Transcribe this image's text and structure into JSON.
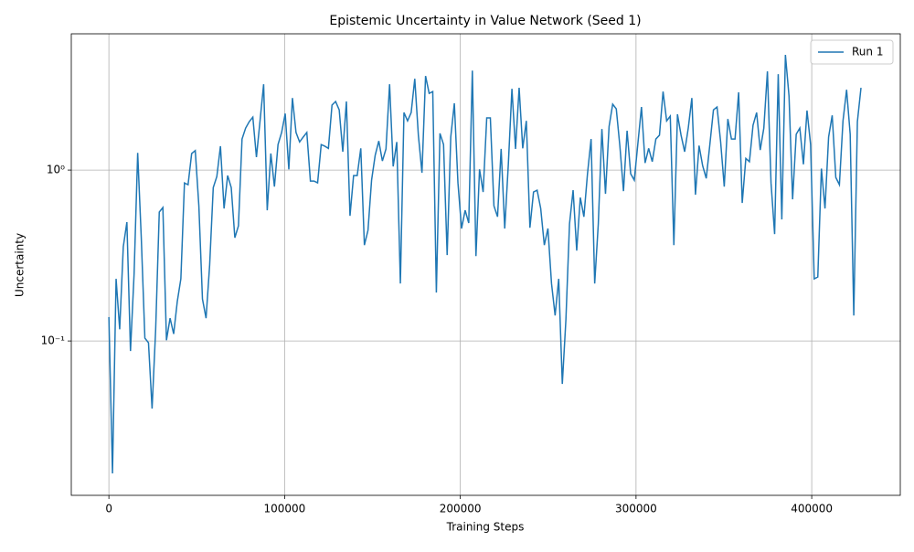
{
  "chart_data": {
    "type": "line",
    "title": "Epistemic Uncertainty in Value Network (Seed 1)",
    "xlabel": "Training Steps",
    "ylabel": "Uncertainty",
    "x": [
      0,
      2048,
      4096,
      6144,
      8192,
      10240,
      12288,
      14336,
      16384,
      18432,
      20480,
      22528,
      24576,
      26624,
      28672,
      30720,
      32768,
      34816,
      36864,
      38912,
      40960,
      43008,
      45056,
      47104,
      49152,
      51200,
      53248,
      55296,
      57344,
      59392,
      61440,
      63488,
      65536,
      67584,
      69632,
      71680,
      73728,
      75776,
      77824,
      79872,
      81920,
      83968,
      86016,
      88064,
      90112,
      92160,
      94208,
      96256,
      98304,
      100352,
      102400,
      104448,
      106496,
      108544,
      110592,
      112640,
      114688,
      116736,
      118784,
      120832,
      122880,
      124928,
      126976,
      129024,
      131072,
      133120,
      135168,
      137216,
      139264,
      141312,
      143360,
      145408,
      147456,
      149504,
      151552,
      153600,
      155648,
      157696,
      159744,
      161792,
      163840,
      165888,
      167936,
      169984,
      172032,
      174080,
      176128,
      178176,
      180224,
      182272,
      184320,
      186368,
      188416,
      190464,
      192512,
      194560,
      196608,
      198656,
      200704,
      202752,
      204800,
      206848,
      208896,
      210944,
      212992,
      215040,
      217088,
      219136,
      221184,
      223232,
      225280,
      227328,
      229376,
      231424,
      233472,
      235520,
      237568,
      239616,
      241664,
      243712,
      245760,
      247808,
      249856,
      251904,
      253952,
      256000,
      258048,
      260096,
      262144,
      264192,
      266240,
      268288,
      270336,
      272384,
      274432,
      276480,
      278528,
      280576,
      282624,
      284672,
      286720,
      288768,
      290816,
      292864,
      294912,
      296960,
      299008,
      301056,
      303104,
      305152,
      307200,
      309248,
      311296,
      313344,
      315392,
      317440,
      319488,
      321536,
      323584,
      325632,
      327680,
      329728,
      331776,
      333824,
      335872,
      337920,
      339968,
      342016,
      344064,
      346112,
      348160,
      350208,
      352256,
      354304,
      356352,
      358400,
      360448,
      362496,
      364544,
      366592,
      368640,
      370688,
      372736,
      374784,
      376832,
      378880,
      380928,
      382976,
      385024,
      387072,
      389120,
      391168,
      393216,
      395264,
      397312,
      399360,
      401408,
      403456,
      405504,
      407552,
      409600,
      411648,
      413696,
      415744,
      417792,
      419840,
      421888,
      423936,
      425984,
      428032
    ],
    "series": [
      {
        "name": "Run 1",
        "color": "#1f77b4",
        "values": [
          0.138,
          0.0168,
          0.231,
          0.117,
          0.356,
          0.496,
          0.0873,
          0.246,
          1.26,
          0.402,
          0.104,
          0.0976,
          0.0402,
          0.117,
          0.568,
          0.604,
          0.101,
          0.136,
          0.11,
          0.17,
          0.231,
          0.841,
          0.821,
          1.25,
          1.3,
          0.618,
          0.176,
          0.136,
          0.278,
          0.79,
          0.917,
          1.38,
          0.596,
          0.929,
          0.79,
          0.402,
          0.472,
          1.52,
          1.76,
          1.92,
          2.04,
          1.19,
          1.94,
          3.18,
          0.582,
          1.25,
          0.8,
          1.41,
          1.66,
          2.14,
          1.01,
          2.64,
          1.66,
          1.46,
          1.56,
          1.66,
          0.863,
          0.863,
          0.842,
          1.41,
          1.38,
          1.34,
          2.4,
          2.52,
          2.25,
          1.28,
          2.52,
          0.54,
          0.929,
          0.929,
          1.34,
          0.364,
          0.444,
          0.873,
          1.22,
          1.48,
          1.13,
          1.33,
          3.18,
          1.05,
          1.46,
          0.217,
          2.17,
          1.94,
          2.17,
          3.42,
          1.6,
          0.964,
          3.55,
          2.81,
          2.88,
          0.192,
          1.64,
          1.41,
          0.318,
          1.56,
          2.46,
          0.842,
          0.455,
          0.582,
          0.49,
          3.82,
          0.314,
          1.01,
          0.744,
          2.02,
          2.02,
          0.618,
          0.533,
          1.33,
          0.455,
          1.08,
          2.99,
          1.33,
          3.03,
          1.34,
          1.94,
          0.46,
          0.744,
          0.763,
          0.596,
          0.364,
          0.455,
          0.217,
          0.141,
          0.231,
          0.0561,
          0.133,
          0.484,
          0.763,
          0.338,
          0.691,
          0.533,
          0.952,
          1.52,
          0.217,
          0.484,
          1.74,
          0.726,
          1.8,
          2.43,
          2.28,
          1.38,
          0.753,
          1.7,
          0.952,
          0.873,
          1.43,
          2.34,
          1.1,
          1.34,
          1.12,
          1.52,
          1.6,
          2.88,
          1.94,
          2.07,
          0.364,
          2.12,
          1.6,
          1.28,
          1.76,
          2.64,
          0.717,
          1.39,
          1.06,
          0.895,
          1.41,
          2.25,
          2.34,
          1.46,
          0.8,
          1.99,
          1.52,
          1.52,
          2.85,
          0.642,
          1.17,
          1.12,
          1.83,
          2.17,
          1.31,
          1.76,
          3.78,
          0.842,
          0.422,
          3.64,
          0.514,
          4.72,
          2.71,
          0.674,
          1.62,
          1.76,
          1.08,
          2.23,
          1.41,
          0.231,
          0.237,
          1.02,
          0.596,
          1.56,
          2.09,
          0.906,
          0.821,
          1.94,
          2.95,
          1.62,
          0.141,
          1.92,
          3.03
        ]
      }
    ],
    "xlim": [
      -21400,
      450400
    ],
    "xticks": [
      0,
      100000,
      200000,
      300000,
      400000
    ],
    "ylim": [
      0.0125,
      6.27
    ],
    "yticks": [
      {
        "value": 0.1,
        "label": "10⁻¹"
      },
      {
        "value": 1,
        "label": "10⁰"
      }
    ],
    "yscale": "log",
    "grid": true,
    "legend": "upper right"
  }
}
